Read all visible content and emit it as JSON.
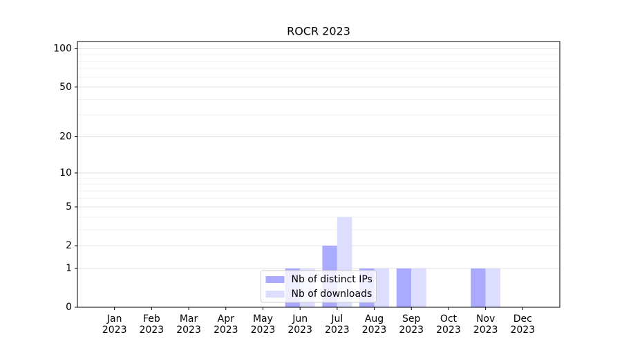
{
  "chart_data": {
    "type": "bar",
    "title": "ROCR 2023",
    "categories": [
      "Jan 2023",
      "Feb 2023",
      "Mar 2023",
      "Apr 2023",
      "May 2023",
      "Jun 2023",
      "Jul 2023",
      "Aug 2023",
      "Sep 2023",
      "Oct 2023",
      "Nov 2023",
      "Dec 2023"
    ],
    "series": [
      {
        "name": "Nb of distinct IPs",
        "color": "#aaaaff",
        "values": [
          0,
          0,
          0,
          0,
          0,
          1,
          2,
          1,
          1,
          0,
          1,
          0
        ]
      },
      {
        "name": "Nb of downloads",
        "color": "#ddddff",
        "values": [
          0,
          0,
          0,
          0,
          0,
          1,
          4,
          1,
          1,
          0,
          1,
          0
        ]
      }
    ],
    "yscale": "log1p",
    "ylim": [
      0,
      114
    ],
    "yticks": [
      0,
      1,
      2,
      5,
      10,
      20,
      50,
      100
    ],
    "yminorticks": [
      3,
      4,
      6,
      7,
      8,
      9,
      30,
      40,
      60,
      70,
      80,
      90
    ],
    "grid": true,
    "legend": "lower center"
  }
}
